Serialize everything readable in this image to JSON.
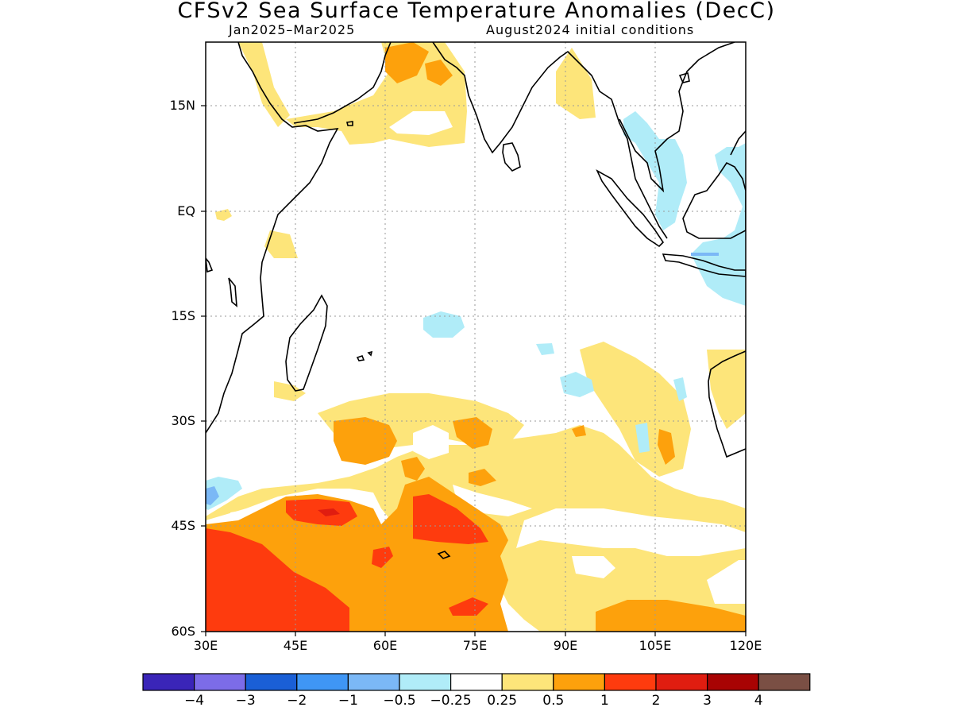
{
  "title": "CFSv2 Sea Surface Temperature Anomalies (DecC)",
  "period": "Jan2025–Mar2025",
  "init": "August2024 initial conditions",
  "lat_labels": [
    "15N",
    "EQ",
    "15S",
    "30S",
    "45S",
    "60S"
  ],
  "lon_labels": [
    "30E",
    "45E",
    "60E",
    "75E",
    "90E",
    "105E",
    "120E"
  ],
  "colorbar": {
    "colors": [
      "#3a25b8",
      "#7c6ce8",
      "#1a5fd6",
      "#3f96f5",
      "#7bb8f6",
      "#b0ecf8",
      "#ffffff",
      "#fde57a",
      "#fda10c",
      "#fe3b0e",
      "#e01d10",
      "#a80303",
      "#7a4f44"
    ],
    "labels": [
      "−4",
      "−3",
      "−2",
      "−1",
      "−0.5",
      "−0.25",
      "0.25",
      "0.5",
      "1",
      "2",
      "3",
      "4"
    ]
  },
  "map_data": {
    "extent": {
      "lon": [
        30,
        120
      ],
      "lat": [
        -60,
        24
      ]
    },
    "levels": [
      -4,
      -3,
      -2,
      -1,
      -0.5,
      -0.25,
      0.25,
      0.5,
      1,
      2,
      3,
      4
    ]
  }
}
